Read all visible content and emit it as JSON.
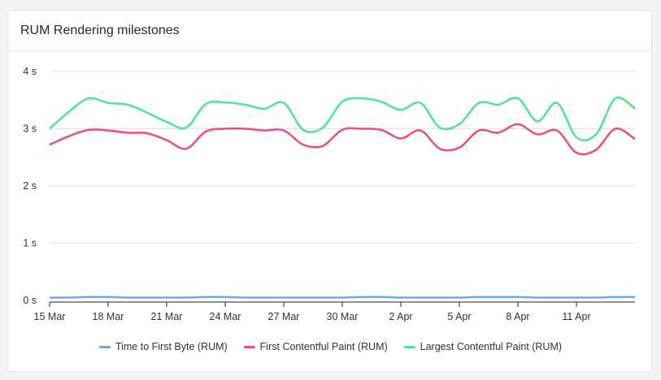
{
  "panel": {
    "title": "RUM Rendering milestones"
  },
  "chart_data": {
    "type": "line",
    "title": "RUM Rendering milestones",
    "x": [
      "15 Mar",
      "16 Mar",
      "17 Mar",
      "18 Mar",
      "19 Mar",
      "20 Mar",
      "21 Mar",
      "22 Mar",
      "23 Mar",
      "24 Mar",
      "25 Mar",
      "26 Mar",
      "27 Mar",
      "28 Mar",
      "29 Mar",
      "30 Mar",
      "31 Mar",
      "1 Apr",
      "2 Apr",
      "3 Apr",
      "4 Apr",
      "5 Apr",
      "6 Apr",
      "7 Apr",
      "8 Apr",
      "9 Apr",
      "10 Apr",
      "11 Apr",
      "12 Apr",
      "13 Apr",
      "14 Apr"
    ],
    "x_ticks": [
      "15 Mar",
      "18 Mar",
      "21 Mar",
      "24 Mar",
      "27 Mar",
      "30 Mar",
      "2 Apr",
      "5 Apr",
      "8 Apr",
      "11 Apr"
    ],
    "y_ticks": [
      "0 s",
      "1 s",
      "2 s",
      "3 s",
      "4 s"
    ],
    "ylim": [
      0,
      4
    ],
    "yunit": "s",
    "grid": true,
    "legend_position": "bottom",
    "series": [
      {
        "name": "Time to First Byte (RUM)",
        "color": "#73a4ea",
        "values": [
          0.05,
          0.05,
          0.06,
          0.06,
          0.05,
          0.05,
          0.05,
          0.05,
          0.06,
          0.06,
          0.05,
          0.05,
          0.05,
          0.05,
          0.05,
          0.05,
          0.06,
          0.06,
          0.05,
          0.05,
          0.05,
          0.05,
          0.06,
          0.06,
          0.06,
          0.05,
          0.05,
          0.05,
          0.05,
          0.06,
          0.06
        ]
      },
      {
        "name": "First Contentful Paint (RUM)",
        "color": "#f04d74",
        "values": [
          2.72,
          2.87,
          2.98,
          2.97,
          2.93,
          2.92,
          2.8,
          2.65,
          2.95,
          3.0,
          3.0,
          2.97,
          2.97,
          2.72,
          2.7,
          2.98,
          3.0,
          2.98,
          2.83,
          2.97,
          2.65,
          2.67,
          2.97,
          2.93,
          3.08,
          2.9,
          2.97,
          2.58,
          2.63,
          3.0,
          2.82
        ]
      },
      {
        "name": "Largest Contentful Paint (RUM)",
        "color": "#4ce68f",
        "values": [
          3.0,
          3.3,
          3.53,
          3.45,
          3.42,
          3.28,
          3.12,
          3.02,
          3.43,
          3.46,
          3.42,
          3.35,
          3.45,
          2.98,
          3.02,
          3.47,
          3.53,
          3.47,
          3.33,
          3.45,
          3.02,
          3.08,
          3.45,
          3.42,
          3.53,
          3.13,
          3.45,
          2.85,
          2.9,
          3.53,
          3.35
        ]
      }
    ]
  }
}
